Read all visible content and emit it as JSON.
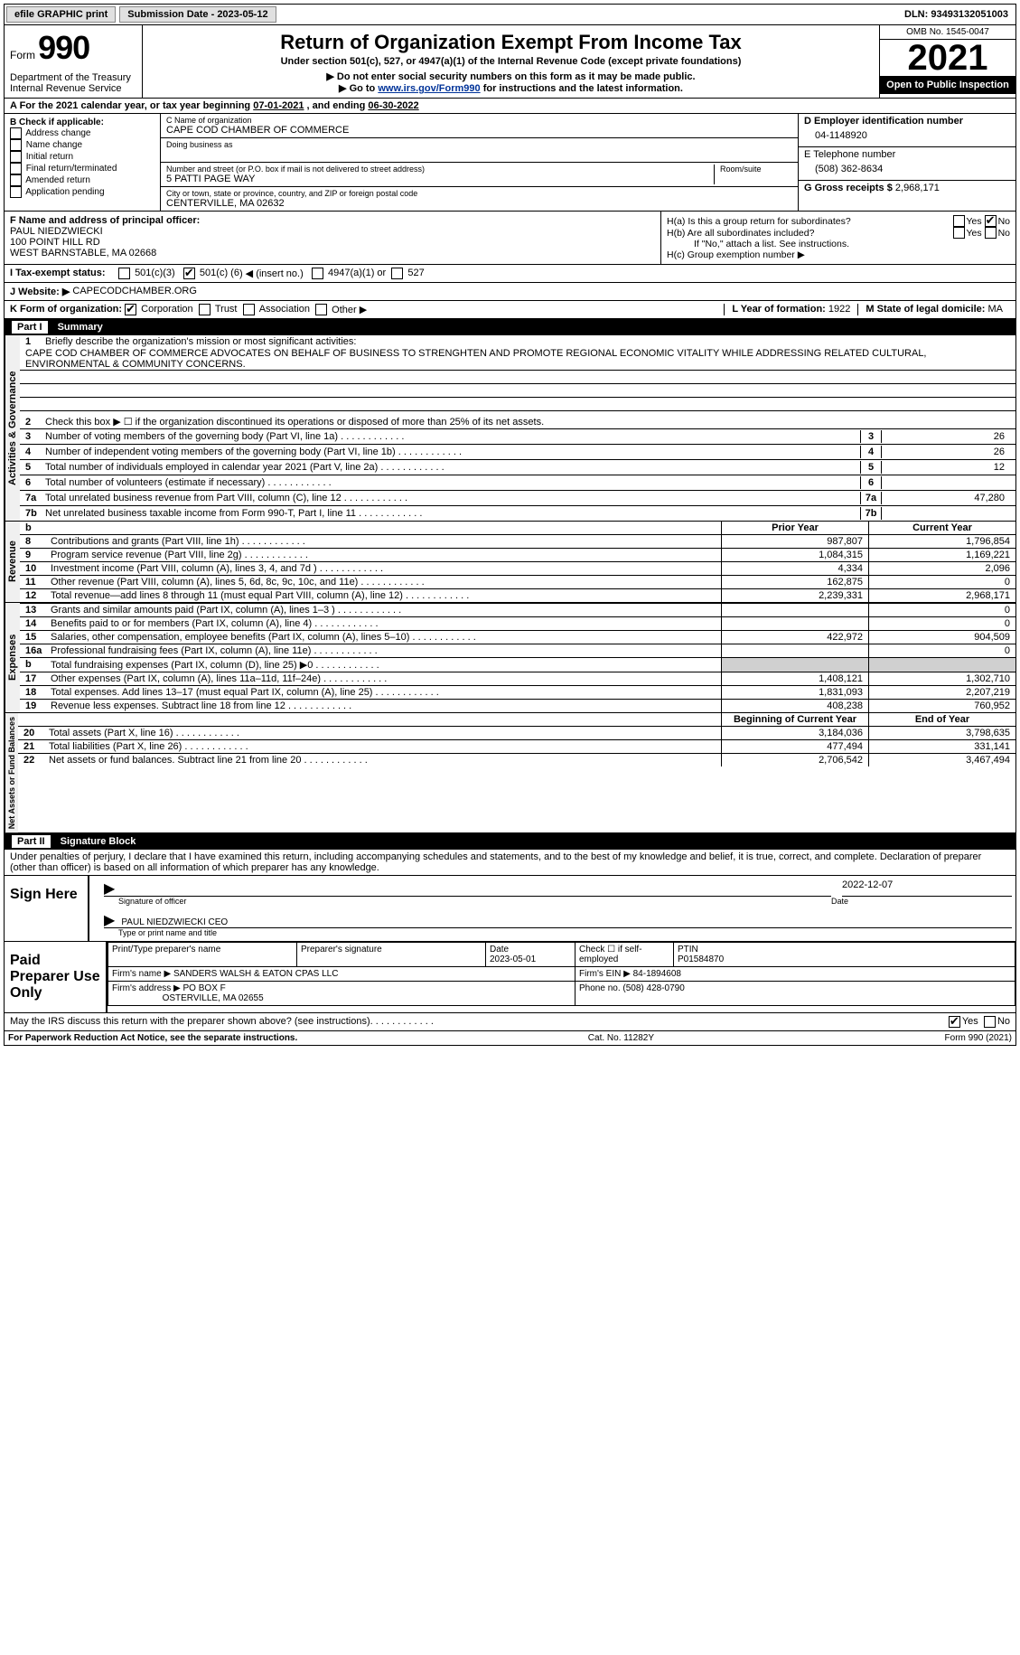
{
  "topbar": {
    "efile": "efile GRAPHIC print",
    "submission": "Submission Date - 2023-05-12",
    "dln": "DLN: 93493132051003"
  },
  "header": {
    "form_word": "Form",
    "form_num": "990",
    "title": "Return of Organization Exempt From Income Tax",
    "subtitle": "Under section 501(c), 527, or 4947(a)(1) of the Internal Revenue Code (except private foundations)",
    "note1": "▶ Do not enter social security numbers on this form as it may be made public.",
    "note2_pre": "▶ Go to ",
    "note2_link": "www.irs.gov/Form990",
    "note2_post": " for instructions and the latest information.",
    "dept": "Department of the Treasury",
    "irs": "Internal Revenue Service",
    "omb": "OMB No. 1545-0047",
    "year": "2021",
    "open": "Open to Public Inspection"
  },
  "period": {
    "label": "A For the 2021 calendar year, or tax year beginning ",
    "begin": "07-01-2021",
    "mid": " , and ending ",
    "end": "06-30-2022"
  },
  "boxB": {
    "label": "B Check if applicable:",
    "items": [
      "Address change",
      "Name change",
      "Initial return",
      "Final return/terminated",
      "Amended return",
      "Application pending"
    ]
  },
  "boxC": {
    "name_label": "C Name of organization",
    "name": "CAPE COD CHAMBER OF COMMERCE",
    "dba_label": "Doing business as",
    "addr_label": "Number and street (or P.O. box if mail is not delivered to street address)",
    "room_label": "Room/suite",
    "addr": "5 PATTI PAGE WAY",
    "city_label": "City or town, state or province, country, and ZIP or foreign postal code",
    "city": "CENTERVILLE, MA  02632"
  },
  "boxD": {
    "label": "D Employer identification number",
    "val": "04-1148920"
  },
  "boxE": {
    "label": "E Telephone number",
    "val": "(508) 362-8634"
  },
  "boxG": {
    "label": "G Gross receipts $",
    "val": "2,968,171"
  },
  "boxF": {
    "label": "F  Name and address of principal officer:",
    "name": "PAUL NIEDZWIECKI",
    "addr1": "100 POINT HILL RD",
    "addr2": "WEST BARNSTABLE, MA  02668"
  },
  "boxH": {
    "a": "H(a)  Is this a group return for subordinates?",
    "b": "H(b)  Are all subordinates included?",
    "b_note": "If \"No,\" attach a list. See instructions.",
    "c": "H(c)  Group exemption number ▶",
    "yes": "Yes",
    "no": "No"
  },
  "boxI": {
    "label": "I   Tax-exempt status:",
    "c3": "501(c)(3)",
    "c_pre": "501(c) (",
    "c_num": "6",
    "c_post": ") ◀ (insert no.)",
    "a1": "4947(a)(1) or",
    "s527": "527"
  },
  "boxJ": {
    "label": "J   Website: ▶",
    "val": "CAPECODCHAMBER.ORG"
  },
  "boxK": {
    "label": "K Form of organization:",
    "opts": [
      "Corporation",
      "Trust",
      "Association",
      "Other ▶"
    ]
  },
  "boxL": {
    "label": "L Year of formation:",
    "val": "1922"
  },
  "boxM": {
    "label": "M State of legal domicile:",
    "val": "MA"
  },
  "partI": {
    "label": "Part I",
    "title": "Summary"
  },
  "summary": {
    "q1": "Briefly describe the organization's mission or most significant activities:",
    "mission": "CAPE COD CHAMBER OF COMMERCE ADVOCATES ON BEHALF OF BUSINESS TO STRENGHTEN AND PROMOTE REGIONAL ECONOMIC VITALITY WHILE ADDRESSING RELATED CULTURAL, ENVIRONMENTAL & COMMUNITY CONCERNS.",
    "q2": "Check this box ▶ ☐ if the organization discontinued its operations or disposed of more than 25% of its net assets.",
    "lines_ag": [
      {
        "n": "3",
        "d": "Number of voting members of the governing body (Part VI, line 1a)",
        "v": "26"
      },
      {
        "n": "4",
        "d": "Number of independent voting members of the governing body (Part VI, line 1b)",
        "v": "26"
      },
      {
        "n": "5",
        "d": "Total number of individuals employed in calendar year 2021 (Part V, line 2a)",
        "v": "12"
      },
      {
        "n": "6",
        "d": "Total number of volunteers (estimate if necessary)",
        "v": ""
      },
      {
        "n": "7a",
        "d": "Total unrelated business revenue from Part VIII, column (C), line 12",
        "v": "47,280"
      },
      {
        "n": "7b",
        "d": "Net unrelated business taxable income from Form 990-T, Part I, line 11",
        "v": ""
      }
    ],
    "hdr_prior": "Prior Year",
    "hdr_curr": "Current Year",
    "revenue": [
      {
        "n": "8",
        "d": "Contributions and grants (Part VIII, line 1h)",
        "p": "987,807",
        "c": "1,796,854"
      },
      {
        "n": "9",
        "d": "Program service revenue (Part VIII, line 2g)",
        "p": "1,084,315",
        "c": "1,169,221"
      },
      {
        "n": "10",
        "d": "Investment income (Part VIII, column (A), lines 3, 4, and 7d )",
        "p": "4,334",
        "c": "2,096"
      },
      {
        "n": "11",
        "d": "Other revenue (Part VIII, column (A), lines 5, 6d, 8c, 9c, 10c, and 11e)",
        "p": "162,875",
        "c": "0"
      },
      {
        "n": "12",
        "d": "Total revenue—add lines 8 through 11 (must equal Part VIII, column (A), line 12)",
        "p": "2,239,331",
        "c": "2,968,171"
      }
    ],
    "expenses": [
      {
        "n": "13",
        "d": "Grants and similar amounts paid (Part IX, column (A), lines 1–3 )",
        "p": "",
        "c": "0"
      },
      {
        "n": "14",
        "d": "Benefits paid to or for members (Part IX, column (A), line 4)",
        "p": "",
        "c": "0"
      },
      {
        "n": "15",
        "d": "Salaries, other compensation, employee benefits (Part IX, column (A), lines 5–10)",
        "p": "422,972",
        "c": "904,509"
      },
      {
        "n": "16a",
        "d": "Professional fundraising fees (Part IX, column (A), line 11e)",
        "p": "",
        "c": "0"
      },
      {
        "n": "b",
        "d": "Total fundraising expenses (Part IX, column (D), line 25) ▶0",
        "p": "GREY",
        "c": "GREY"
      },
      {
        "n": "17",
        "d": "Other expenses (Part IX, column (A), lines 11a–11d, 11f–24e)",
        "p": "1,408,121",
        "c": "1,302,710"
      },
      {
        "n": "18",
        "d": "Total expenses. Add lines 13–17 (must equal Part IX, column (A), line 25)",
        "p": "1,831,093",
        "c": "2,207,219"
      },
      {
        "n": "19",
        "d": "Revenue less expenses. Subtract line 18 from line 12",
        "p": "408,238",
        "c": "760,952"
      }
    ],
    "hdr_begin": "Beginning of Current Year",
    "hdr_end": "End of Year",
    "netassets": [
      {
        "n": "20",
        "d": "Total assets (Part X, line 16)",
        "p": "3,184,036",
        "c": "3,798,635"
      },
      {
        "n": "21",
        "d": "Total liabilities (Part X, line 26)",
        "p": "477,494",
        "c": "331,141"
      },
      {
        "n": "22",
        "d": "Net assets or fund balances. Subtract line 21 from line 20",
        "p": "2,706,542",
        "c": "3,467,494"
      }
    ],
    "vlab_ag": "Activities & Governance",
    "vlab_rev": "Revenue",
    "vlab_exp": "Expenses",
    "vlab_na": "Net Assets or Fund Balances"
  },
  "partII": {
    "label": "Part II",
    "title": "Signature Block"
  },
  "sig": {
    "penalties": "Under penalties of perjury, I declare that I have examined this return, including accompanying schedules and statements, and to the best of my knowledge and belief, it is true, correct, and complete. Declaration of preparer (other than officer) is based on all information of which preparer has any knowledge.",
    "sign_here": "Sign Here",
    "sig_officer": "Signature of officer",
    "date": "Date",
    "date_val": "2022-12-07",
    "name_title": "PAUL NIEDZWIECKI CEO",
    "type_name": "Type or print name and title",
    "paid": "Paid Preparer Use Only",
    "prep_name_lbl": "Print/Type preparer's name",
    "prep_sig_lbl": "Preparer's signature",
    "prep_date": "2023-05-01",
    "self_emp": "Check ☐ if self-employed",
    "ptin_lbl": "PTIN",
    "ptin": "P01584870",
    "firm_name_lbl": "Firm's name   ▶",
    "firm_name": "SANDERS WALSH & EATON CPAS LLC",
    "firm_ein_lbl": "Firm's EIN ▶",
    "firm_ein": "84-1894608",
    "firm_addr_lbl": "Firm's address ▶",
    "firm_addr": "PO BOX F",
    "firm_city": "OSTERVILLE, MA  02655",
    "firm_phone_lbl": "Phone no.",
    "firm_phone": "(508) 428-0790",
    "discuss": "May the IRS discuss this return with the preparer shown above? (see instructions)",
    "yes": "Yes",
    "no": "No"
  },
  "footer": {
    "paperwork": "For Paperwork Reduction Act Notice, see the separate instructions.",
    "cat": "Cat. No. 11282Y",
    "form": "Form 990 (2021)"
  }
}
